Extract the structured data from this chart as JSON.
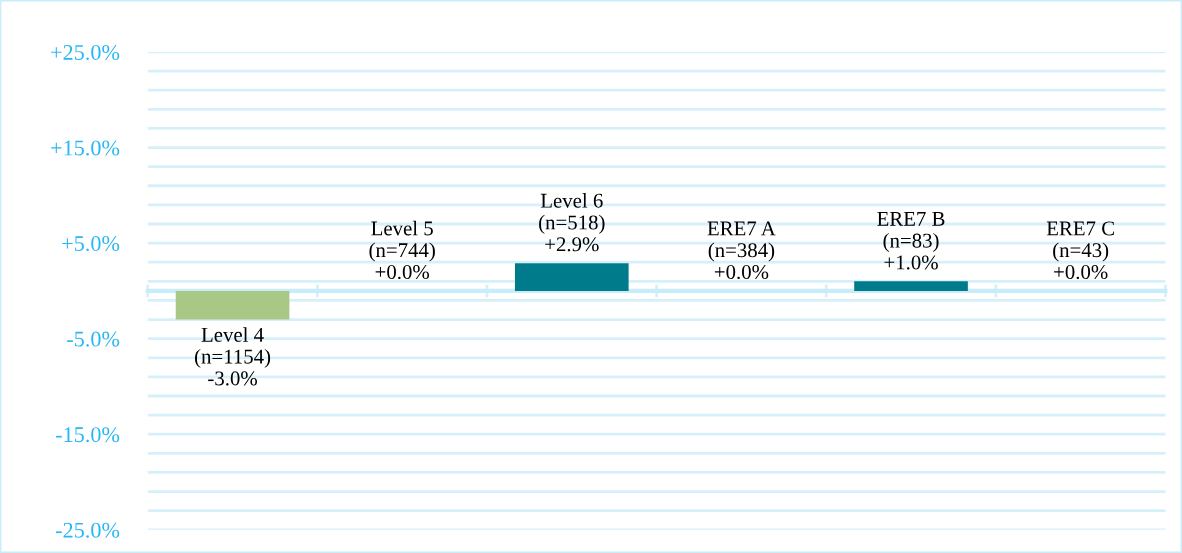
{
  "chart_data": {
    "type": "bar",
    "categories": [
      "Level 4\n(n=1154)",
      "Level 5\n(n=744)",
      "Level 6\n(n=518)",
      "ERE7 A\n(n=384)",
      "ERE7 B\n(n=83)",
      "ERE7 C\n(n=43)"
    ],
    "values": [
      -3.0,
      0.0,
      2.9,
      0.0,
      1.0,
      0.0
    ],
    "value_labels": [
      "-3.0%",
      "+0.0%",
      "+2.9%",
      "+0.0%",
      "+1.0%",
      "+0.0%"
    ],
    "colors": [
      "#a9c785",
      "#007b8b",
      "#007b8b",
      "#007b8b",
      "#007b8b",
      "#007b8b"
    ],
    "ylim": [
      -25,
      25
    ],
    "yticks": [
      {
        "value": -25,
        "label": "-25.0%"
      },
      {
        "value": -23,
        "label": null
      },
      {
        "value": -21,
        "label": null
      },
      {
        "value": -19,
        "label": null
      },
      {
        "value": -17,
        "label": null
      },
      {
        "value": -15,
        "label": "-15.0%"
      },
      {
        "value": -13,
        "label": null
      },
      {
        "value": -11,
        "label": null
      },
      {
        "value": -9,
        "label": null
      },
      {
        "value": -7,
        "label": null
      },
      {
        "value": -5,
        "label": "-5.0%"
      },
      {
        "value": -3,
        "label": null
      },
      {
        "value": -1,
        "label": null
      },
      {
        "value": 1,
        "label": null
      },
      {
        "value": 3,
        "label": null
      },
      {
        "value": 5,
        "label": "+5.0%"
      },
      {
        "value": 7,
        "label": null
      },
      {
        "value": 9,
        "label": null
      },
      {
        "value": 11,
        "label": null
      },
      {
        "value": 13,
        "label": null
      },
      {
        "value": 15,
        "label": "+15.0%"
      },
      {
        "value": 17,
        "label": null
      },
      {
        "value": 19,
        "label": null
      },
      {
        "value": 21,
        "label": null
      },
      {
        "value": 23,
        "label": null
      },
      {
        "value": 25,
        "label": "+25.0%"
      }
    ],
    "grid": "y",
    "tick_labels": "y"
  }
}
